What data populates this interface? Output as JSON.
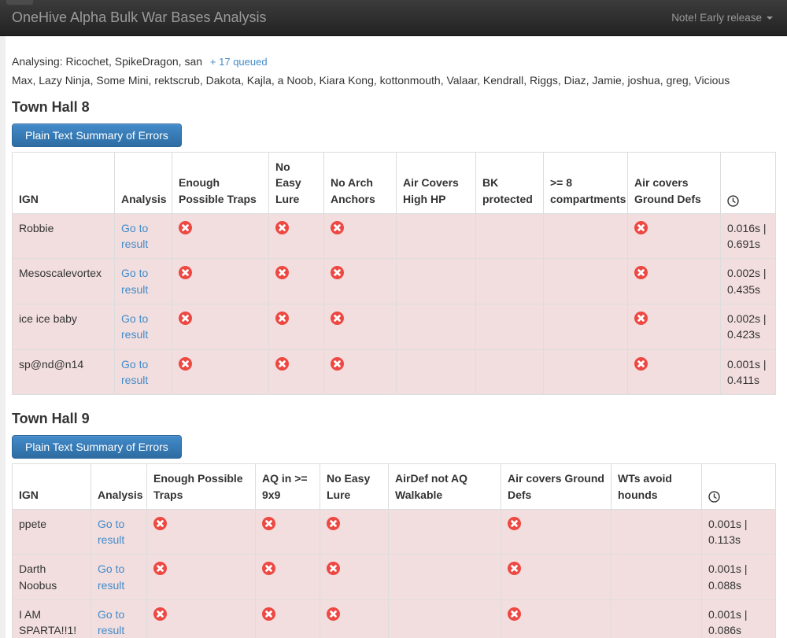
{
  "navbar": {
    "brand": "OneHive Alpha Bulk War Bases Analysis",
    "menu_label": "Note! Early release",
    "menu_icon": "caret-down-icon"
  },
  "status": {
    "analysing_text": "Analysing: Ricochet, SpikeDragon, san",
    "queued_link": "+ 17 queued",
    "queued_names": "Max, Lazy Ninja, Some Mini, rektscrub, Dakota, Kajla, a Noob, Kiara Kong, kottonmouth, Valaar, Kendrall, Riggs, Diaz, Jamie, joshua, greg, Vicious"
  },
  "icons": {
    "error": "error-icon",
    "time_column": "clock-icon"
  },
  "colors": {
    "accent_blue": "#428bca",
    "danger_row_bg": "#f2dede",
    "error_red": "#ed4842",
    "navbar_text": "#9a9a9a"
  },
  "sections": [
    {
      "heading": "Town Hall 8",
      "button_label": "Plain Text Summary of Errors",
      "columns": [
        "IGN",
        "Analysis",
        "Enough Possible Traps",
        "No Easy Lure",
        "No Arch Anchors",
        "Air Covers High HP",
        "BK protected",
        ">= 8 compartments",
        "Air covers Ground Defs"
      ],
      "rows": [
        {
          "ign": "Robbie",
          "analysis_link": "Go to result",
          "flags": [
            1,
            1,
            1,
            0,
            0,
            0,
            1
          ],
          "time": "0.016s | 0.691s"
        },
        {
          "ign": "Mesoscalevortex",
          "analysis_link": "Go to result",
          "flags": [
            1,
            1,
            1,
            0,
            0,
            0,
            1
          ],
          "time": "0.002s | 0.435s"
        },
        {
          "ign": "ice ice baby",
          "analysis_link": "Go to result",
          "flags": [
            1,
            1,
            1,
            0,
            0,
            0,
            1
          ],
          "time": "0.002s | 0.423s"
        },
        {
          "ign": "sp@nd@n14",
          "analysis_link": "Go to result",
          "flags": [
            1,
            1,
            1,
            0,
            0,
            0,
            1
          ],
          "time": "0.001s | 0.411s"
        }
      ]
    },
    {
      "heading": "Town Hall 9",
      "button_label": "Plain Text Summary of Errors",
      "columns": [
        "IGN",
        "Analysis",
        "Enough Possible Traps",
        "AQ in >= 9x9",
        "No Easy Lure",
        "AirDef not AQ Walkable",
        "Air covers Ground Defs",
        "WTs avoid hounds"
      ],
      "rows": [
        {
          "ign": "ppete",
          "analysis_link": "Go to result",
          "flags": [
            1,
            1,
            1,
            0,
            1,
            0
          ],
          "time": "0.001s | 0.113s"
        },
        {
          "ign": "Darth Noobus",
          "analysis_link": "Go to result",
          "flags": [
            1,
            1,
            1,
            0,
            1,
            0
          ],
          "time": "0.001s | 0.088s"
        },
        {
          "ign": "I AM SPARTA!!1!",
          "analysis_link": "Go to result",
          "flags": [
            1,
            1,
            1,
            0,
            1,
            0
          ],
          "time": "0.001s | 0.086s"
        }
      ]
    }
  ]
}
